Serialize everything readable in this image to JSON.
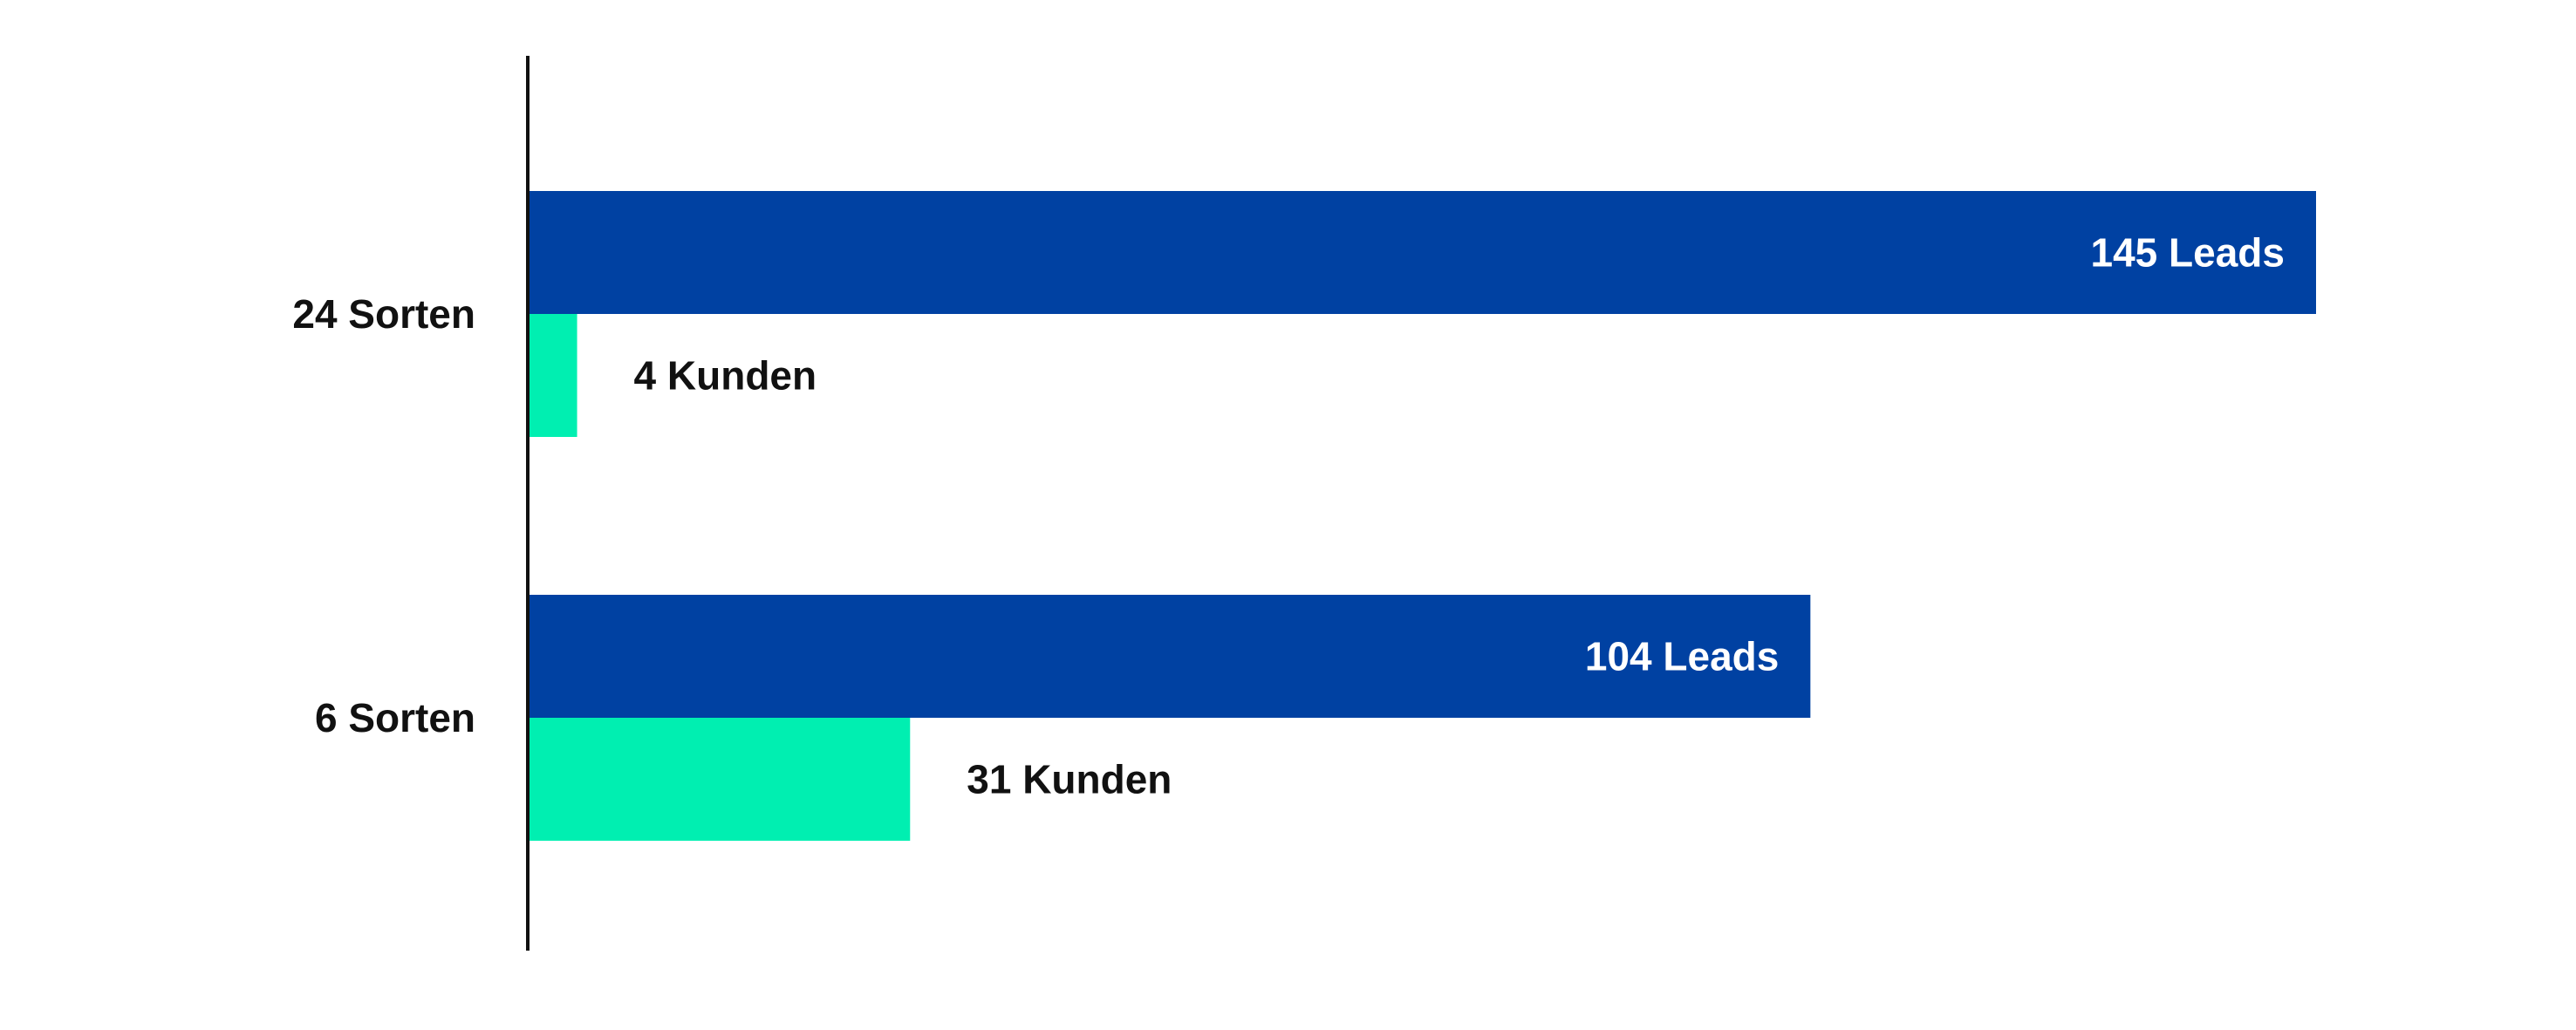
{
  "chart_data": {
    "type": "bar",
    "orientation": "horizontal",
    "categories": [
      "24 Sorten",
      "6 Sorten"
    ],
    "series": [
      {
        "key": "leads",
        "values": [
          145,
          104
        ],
        "value_labels": [
          "145 Leads",
          "104 Leads"
        ],
        "color": "#0041A2",
        "label_position": "inside-end"
      },
      {
        "key": "kunden",
        "values": [
          4,
          31
        ],
        "value_labels": [
          "4 Kunden",
          "31 Kunden"
        ],
        "color": "#00EFB1",
        "label_position": "outside-end"
      }
    ],
    "xlim": [
      0,
      145
    ],
    "grid": false,
    "legend": "none",
    "x_axis_visible": false
  }
}
